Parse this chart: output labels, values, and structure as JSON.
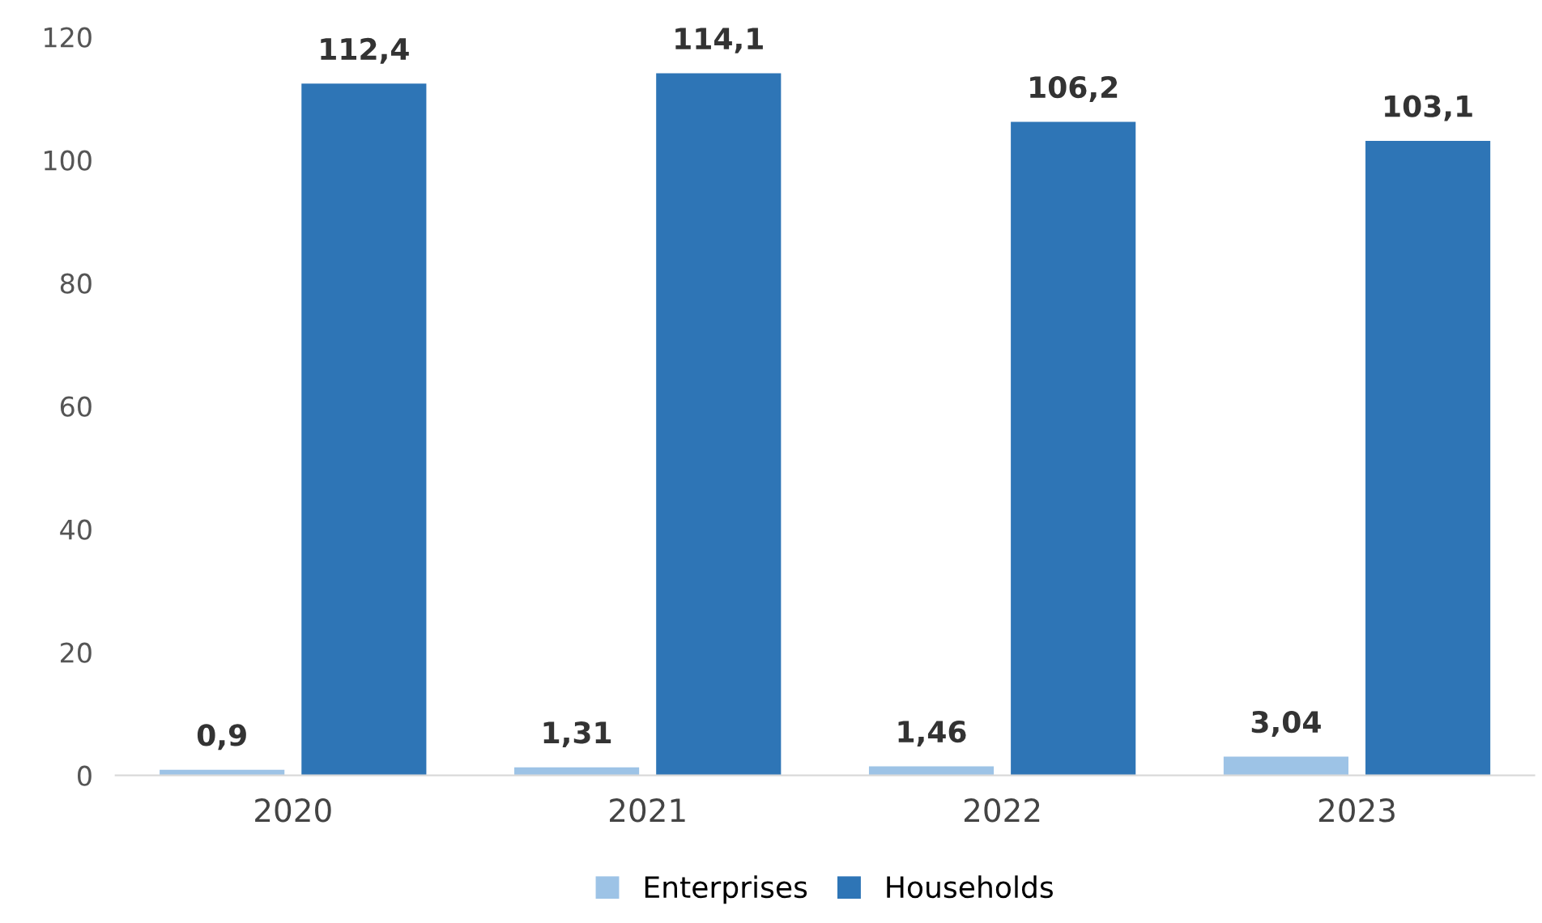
{
  "chart_data": {
    "type": "bar",
    "categories": [
      "2020",
      "2021",
      "2022",
      "2023"
    ],
    "series": [
      {
        "name": "Enterprises",
        "color": "#9dc3e6",
        "values": [
          0.9,
          1.31,
          1.46,
          3.04
        ],
        "value_labels": [
          "0,9",
          "1,31",
          "1,46",
          "3,04"
        ]
      },
      {
        "name": "Households",
        "color": "#2e75b6",
        "values": [
          112.4,
          114.1,
          106.2,
          103.1
        ],
        "value_labels": [
          "112,4",
          "114,1",
          "106,2",
          "103,1"
        ]
      }
    ],
    "ylim": [
      0,
      120
    ],
    "yticks": [
      0,
      20,
      40,
      60,
      80,
      100,
      120
    ],
    "grid": false,
    "legend": "bottom"
  }
}
